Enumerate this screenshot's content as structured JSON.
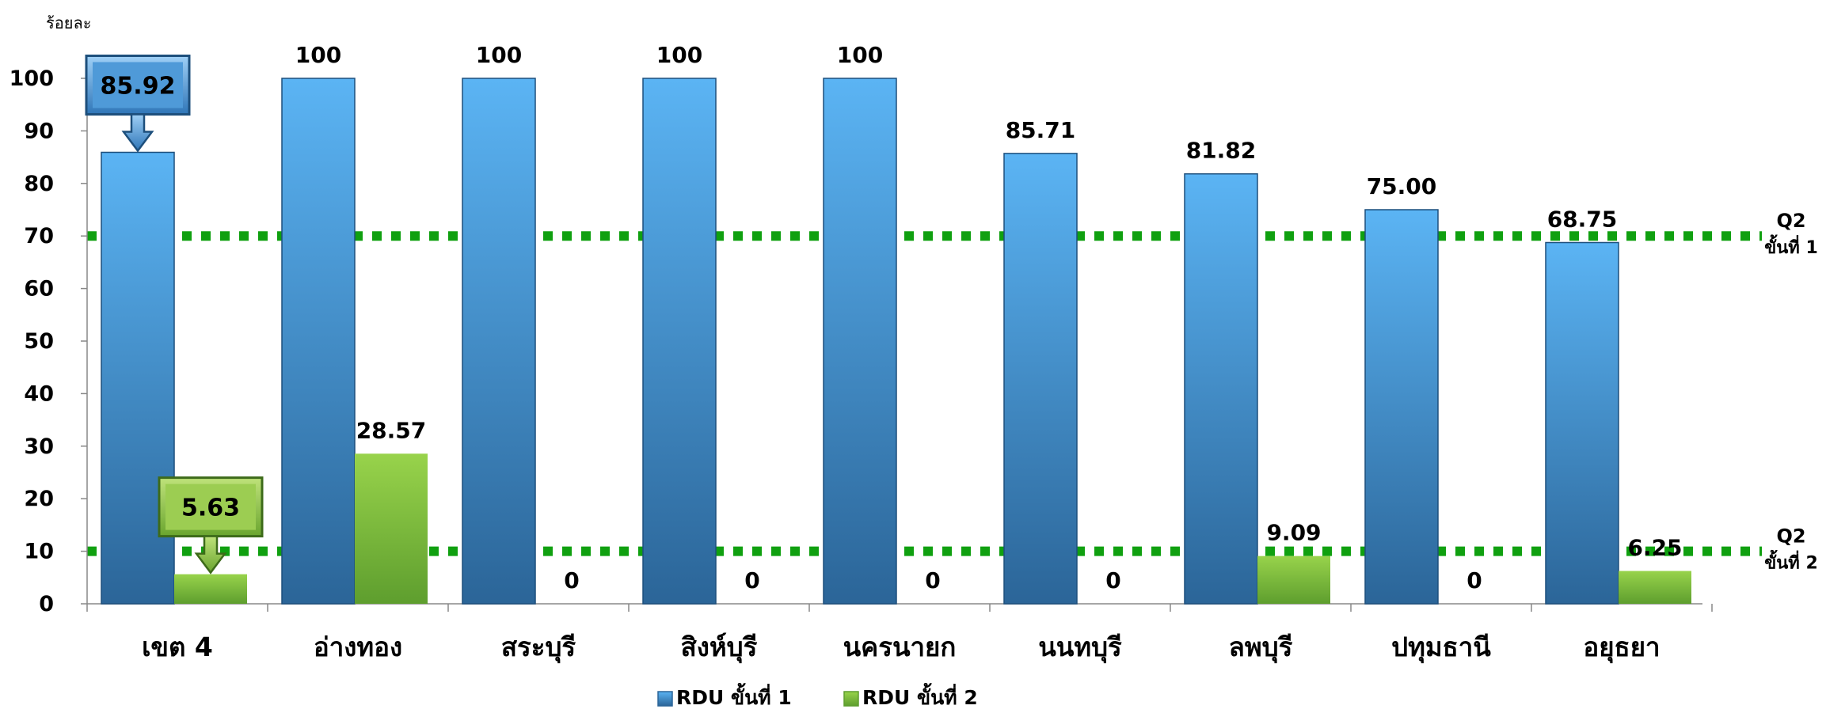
{
  "chart_data": {
    "type": "bar",
    "ylabel": "ร้อยละ",
    "ylim": [
      0,
      100
    ],
    "yticks": [
      0,
      10,
      20,
      30,
      40,
      50,
      60,
      70,
      80,
      90,
      100
    ],
    "categories": [
      "เขต 4",
      "อ่างทอง",
      "สระบุรี",
      "สิงห์บุรี",
      "นครนายก",
      "นนทบุรี",
      "ลพบุรี",
      "ปทุมธานี",
      "อยุธยา"
    ],
    "series": [
      {
        "name": "RDU ขั้นที่ 1",
        "color": "#3f8fd2",
        "values": [
          85.92,
          100,
          100,
          100,
          100,
          85.71,
          81.82,
          75.0,
          68.75
        ],
        "labels": [
          "85.92",
          "100",
          "100",
          "100",
          "100",
          "85.71",
          "81.82",
          "75.00",
          "68.75"
        ]
      },
      {
        "name": "RDU ขั้นที่ 2",
        "color": "#8cc63f",
        "values": [
          5.63,
          28.57,
          0,
          0,
          0,
          0,
          9.09,
          0,
          6.25
        ],
        "labels": [
          "5.63",
          "28.57",
          "0",
          "0",
          "0",
          "0",
          "9.09",
          "0",
          "6.25"
        ]
      }
    ],
    "reference_lines": [
      {
        "value": 70,
        "label_line1": "Q2",
        "label_line2": "ขั้นที่ 1",
        "color": "#10a010"
      },
      {
        "value": 10,
        "label_line1": "Q2",
        "label_line2": "ขั้นที่ 2",
        "color": "#10a010"
      }
    ],
    "callouts": [
      {
        "series": 0,
        "category": 0,
        "text": "85.92"
      },
      {
        "series": 1,
        "category": 0,
        "text": "5.63"
      }
    ],
    "legend_position": "bottom",
    "grid": false
  }
}
